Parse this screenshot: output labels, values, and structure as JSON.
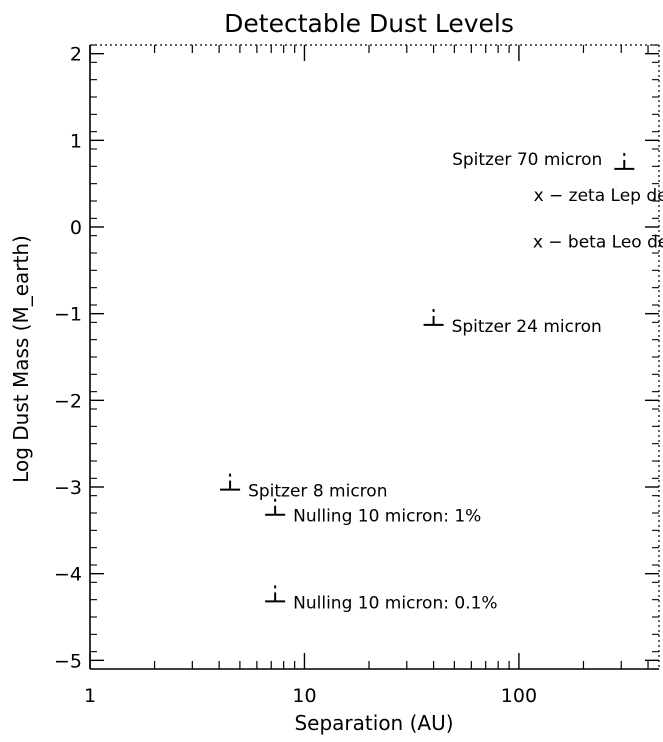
{
  "chart_data": {
    "type": "scatter",
    "title": "Detectable Dust Levels",
    "xlabel": "Separation (AU)",
    "ylabel": "Log Dust Mass (M_earth)",
    "x_scale": "log",
    "xlim": [
      1,
      450
    ],
    "ylim": [
      -5.1,
      2.1
    ],
    "x_ticks": [
      1,
      10,
      100
    ],
    "x_tick_labels": [
      "1",
      "10",
      "100"
    ],
    "y_ticks": [
      -5,
      -4,
      -3,
      -2,
      -1,
      0,
      1,
      2
    ],
    "y_tick_labels": [
      "−5",
      "−4",
      "−3",
      "−2",
      "−1",
      "0",
      "1",
      "2"
    ],
    "grid": false,
    "points": [
      {
        "label": "Spitzer 70 micron",
        "x": 310,
        "y": 0.67,
        "label_side": "left"
      },
      {
        "label": "Spitzer 24 micron",
        "x": 40,
        "y": -1.13,
        "label_side": "right"
      },
      {
        "label": "Spitzer 8 micron",
        "x": 4.5,
        "y": -3.03,
        "label_side": "right"
      },
      {
        "label": "Nulling 10 micron: 1%",
        "x": 7.3,
        "y": -3.32,
        "label_side": "right"
      },
      {
        "label": "Nulling 10 micron: 0.1%",
        "x": 7.3,
        "y": -4.32,
        "label_side": "right"
      }
    ],
    "annotations": [
      {
        "text": "x − zeta Lep detection",
        "x": 330,
        "y": 0.37
      },
      {
        "text": "x − beta Leo detection",
        "x": 330,
        "y": -0.17
      }
    ]
  }
}
